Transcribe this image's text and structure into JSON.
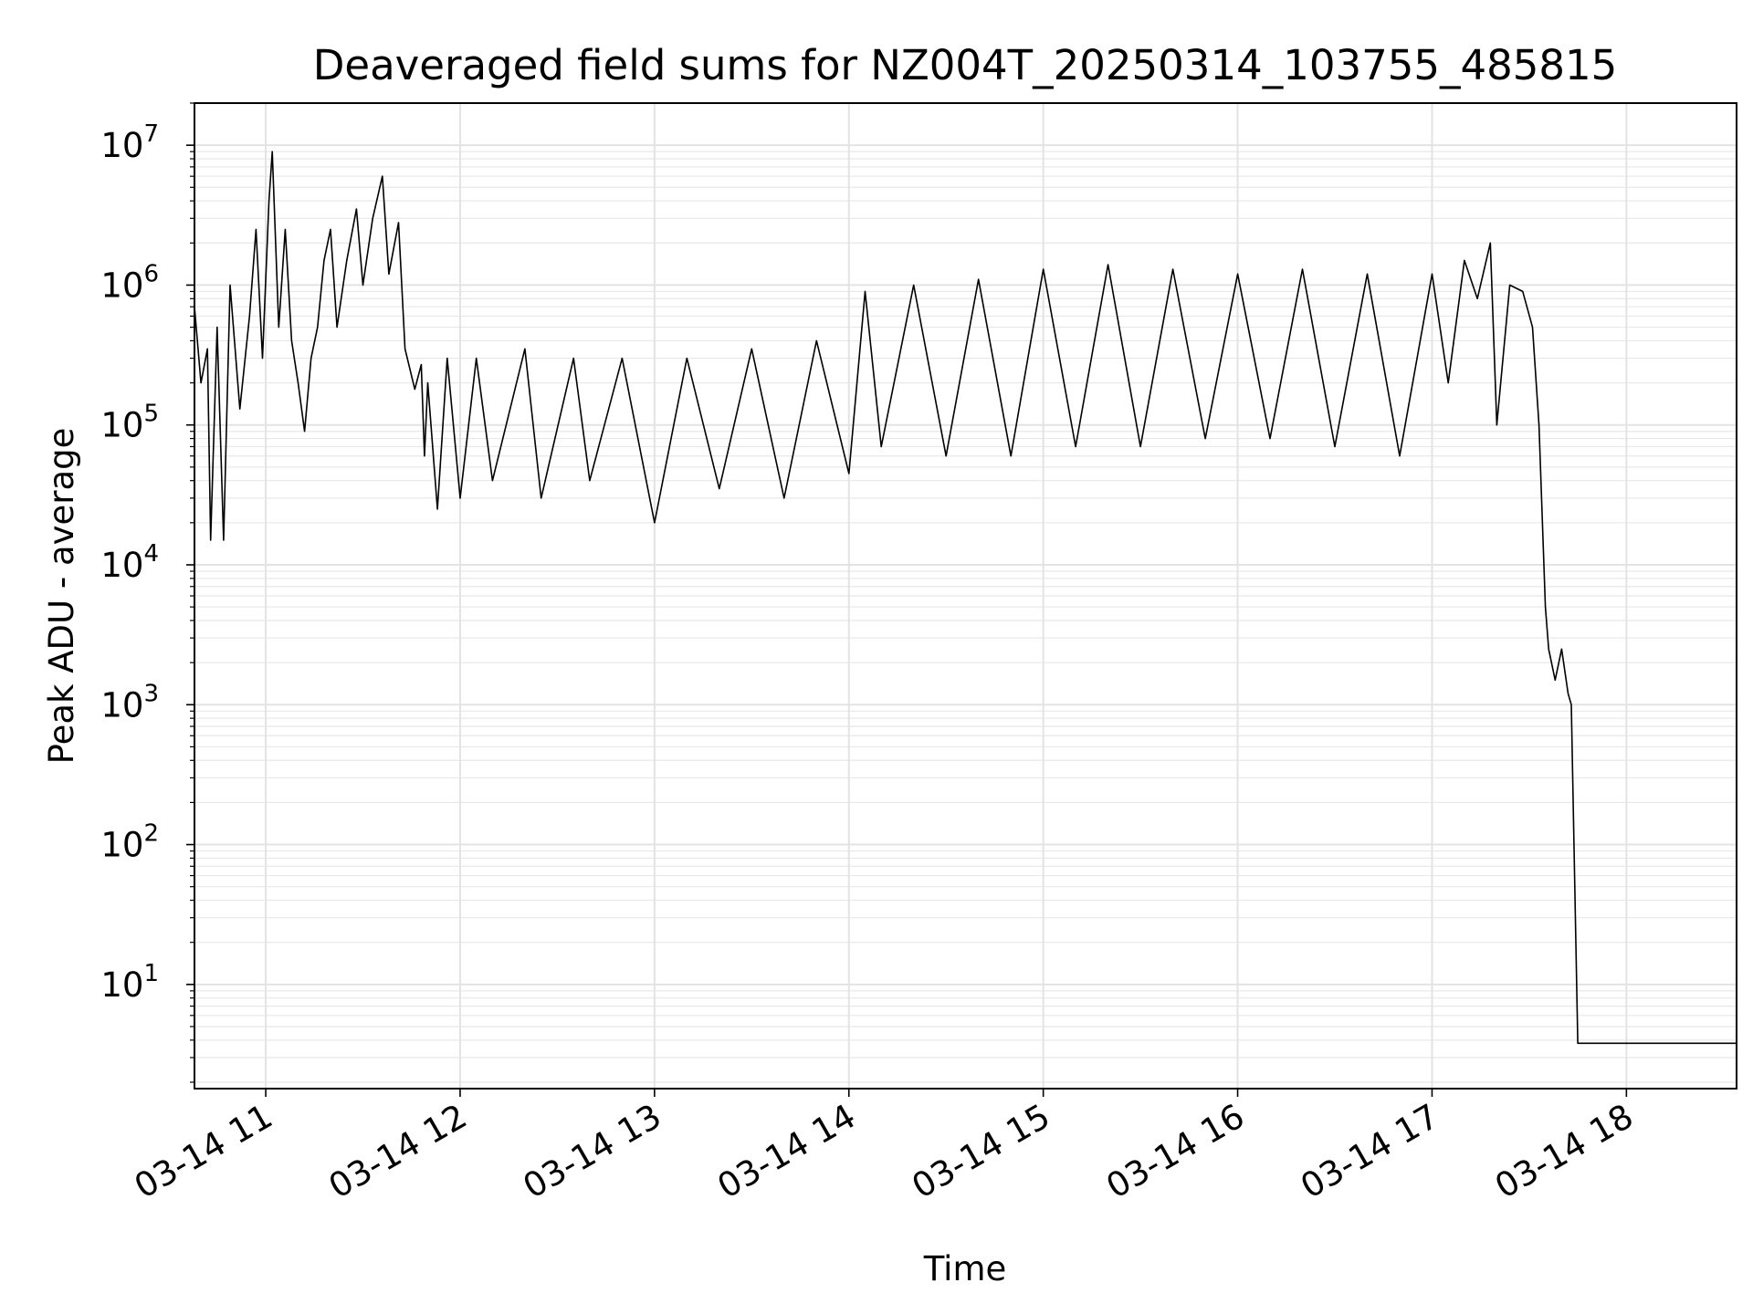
{
  "chart_data": {
    "type": "line",
    "title": "Deaveraged field sums for NZ004T_20250314_103755_485815",
    "xlabel": "Time",
    "ylabel": "Peak ADU - average",
    "yscale": "log",
    "ylim": [
      1.8,
      20000000
    ],
    "xlim": [
      "2025-03-14T10:38",
      "2025-03-14T18:34"
    ],
    "grid": "major and minor",
    "x_ticks": [
      {
        "label": "03-14 11",
        "t": "2025-03-14T11:00"
      },
      {
        "label": "03-14 12",
        "t": "2025-03-14T12:00"
      },
      {
        "label": "03-14 13",
        "t": "2025-03-14T13:00"
      },
      {
        "label": "03-14 14",
        "t": "2025-03-14T14:00"
      },
      {
        "label": "03-14 15",
        "t": "2025-03-14T15:00"
      },
      {
        "label": "03-14 16",
        "t": "2025-03-14T16:00"
      },
      {
        "label": "03-14 17",
        "t": "2025-03-14T17:00"
      },
      {
        "label": "03-14 18",
        "t": "2025-03-14T18:00"
      }
    ],
    "y_ticks": [
      {
        "base": "10",
        "exp": "1",
        "value": 10
      },
      {
        "base": "10",
        "exp": "2",
        "value": 100
      },
      {
        "base": "10",
        "exp": "3",
        "value": 1000
      },
      {
        "base": "10",
        "exp": "4",
        "value": 10000
      },
      {
        "base": "10",
        "exp": "5",
        "value": 100000
      },
      {
        "base": "10",
        "exp": "6",
        "value": 1000000
      },
      {
        "base": "10",
        "exp": "7",
        "value": 10000000
      }
    ],
    "series": [
      {
        "color": "#000000",
        "points": [
          [
            "2025-03-14T10:38",
            700000
          ],
          [
            "2025-03-14T10:40",
            200000
          ],
          [
            "2025-03-14T10:42",
            350000
          ],
          [
            "2025-03-14T10:43",
            15000
          ],
          [
            "2025-03-14T10:45",
            500000
          ],
          [
            "2025-03-14T10:47",
            15000
          ],
          [
            "2025-03-14T10:49",
            1000000
          ],
          [
            "2025-03-14T10:52",
            130000
          ],
          [
            "2025-03-14T10:55",
            600000
          ],
          [
            "2025-03-14T10:57",
            2500000
          ],
          [
            "2025-03-14T10:59",
            300000
          ],
          [
            "2025-03-14T11:01",
            4000000
          ],
          [
            "2025-03-14T11:02",
            9000000
          ],
          [
            "2025-03-14T11:04",
            500000
          ],
          [
            "2025-03-14T11:06",
            2500000
          ],
          [
            "2025-03-14T11:08",
            400000
          ],
          [
            "2025-03-14T11:10",
            200000
          ],
          [
            "2025-03-14T11:12",
            90000
          ],
          [
            "2025-03-14T11:14",
            300000
          ],
          [
            "2025-03-14T11:16",
            500000
          ],
          [
            "2025-03-14T11:18",
            1500000
          ],
          [
            "2025-03-14T11:20",
            2500000
          ],
          [
            "2025-03-14T11:22",
            500000
          ],
          [
            "2025-03-14T11:25",
            1500000
          ],
          [
            "2025-03-14T11:28",
            3500000
          ],
          [
            "2025-03-14T11:30",
            1000000
          ],
          [
            "2025-03-14T11:33",
            3000000
          ],
          [
            "2025-03-14T11:36",
            6000000
          ],
          [
            "2025-03-14T11:38",
            1200000
          ],
          [
            "2025-03-14T11:41",
            2800000
          ],
          [
            "2025-03-14T11:43",
            350000
          ],
          [
            "2025-03-14T11:46",
            180000
          ],
          [
            "2025-03-14T11:48",
            270000
          ],
          [
            "2025-03-14T11:49",
            60000
          ],
          [
            "2025-03-14T11:50",
            200000
          ],
          [
            "2025-03-14T11:53",
            25000
          ],
          [
            "2025-03-14T11:56",
            300000
          ],
          [
            "2025-03-14T12:00",
            30000
          ],
          [
            "2025-03-14T12:05",
            300000
          ],
          [
            "2025-03-14T12:10",
            40000
          ],
          [
            "2025-03-14T12:20",
            350000
          ],
          [
            "2025-03-14T12:25",
            30000
          ],
          [
            "2025-03-14T12:35",
            300000
          ],
          [
            "2025-03-14T12:40",
            40000
          ],
          [
            "2025-03-14T12:50",
            300000
          ],
          [
            "2025-03-14T13:00",
            20000
          ],
          [
            "2025-03-14T13:10",
            300000
          ],
          [
            "2025-03-14T13:20",
            35000
          ],
          [
            "2025-03-14T13:30",
            350000
          ],
          [
            "2025-03-14T13:40",
            30000
          ],
          [
            "2025-03-14T13:50",
            400000
          ],
          [
            "2025-03-14T14:00",
            45000
          ],
          [
            "2025-03-14T14:05",
            900000
          ],
          [
            "2025-03-14T14:10",
            70000
          ],
          [
            "2025-03-14T14:20",
            1000000
          ],
          [
            "2025-03-14T14:30",
            60000
          ],
          [
            "2025-03-14T14:40",
            1100000
          ],
          [
            "2025-03-14T14:50",
            60000
          ],
          [
            "2025-03-14T15:00",
            1300000
          ],
          [
            "2025-03-14T15:10",
            70000
          ],
          [
            "2025-03-14T15:20",
            1400000
          ],
          [
            "2025-03-14T15:30",
            70000
          ],
          [
            "2025-03-14T15:40",
            1300000
          ],
          [
            "2025-03-14T15:50",
            80000
          ],
          [
            "2025-03-14T16:00",
            1200000
          ],
          [
            "2025-03-14T16:10",
            80000
          ],
          [
            "2025-03-14T16:20",
            1300000
          ],
          [
            "2025-03-14T16:30",
            70000
          ],
          [
            "2025-03-14T16:40",
            1200000
          ],
          [
            "2025-03-14T16:50",
            60000
          ],
          [
            "2025-03-14T17:00",
            1200000
          ],
          [
            "2025-03-14T17:05",
            200000
          ],
          [
            "2025-03-14T17:10",
            1500000
          ],
          [
            "2025-03-14T17:14",
            800000
          ],
          [
            "2025-03-14T17:18",
            2000000
          ],
          [
            "2025-03-14T17:20",
            100000
          ],
          [
            "2025-03-14T17:24",
            1000000
          ],
          [
            "2025-03-14T17:28",
            900000
          ],
          [
            "2025-03-14T17:31",
            500000
          ],
          [
            "2025-03-14T17:33",
            100000
          ],
          [
            "2025-03-14T17:35",
            5000
          ],
          [
            "2025-03-14T17:36",
            2500
          ],
          [
            "2025-03-14T17:38",
            1500
          ],
          [
            "2025-03-14T17:40",
            2500
          ],
          [
            "2025-03-14T17:42",
            1200
          ],
          [
            "2025-03-14T17:43",
            1000
          ],
          [
            "2025-03-14T17:45",
            3.8
          ],
          [
            "2025-03-14T18:34",
            3.8
          ]
        ]
      }
    ]
  }
}
